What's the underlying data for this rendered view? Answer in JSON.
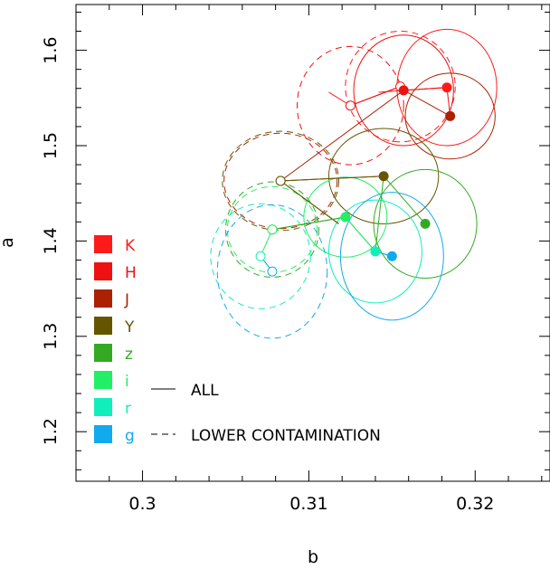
{
  "chart_data": {
    "type": "scatter",
    "xlabel": "b",
    "ylabel": "a",
    "xlim": [
      0.296,
      0.3245
    ],
    "ylim": [
      1.148,
      1.648
    ],
    "xticks": [
      {
        "value": 0.3,
        "label": "0.3"
      },
      {
        "value": 0.31,
        "label": "0.31"
      },
      {
        "value": 0.32,
        "label": "0.32"
      }
    ],
    "yticks": [
      {
        "value": 1.2,
        "label": "1.2"
      },
      {
        "value": 1.3,
        "label": "1.3"
      },
      {
        "value": 1.4,
        "label": "1.4"
      },
      {
        "value": 1.5,
        "label": "1.5"
      },
      {
        "value": 1.6,
        "label": "1.6"
      }
    ],
    "legend_placement": "lower-left",
    "linestyles": [
      {
        "style": "solid",
        "label": "ALL"
      },
      {
        "style": "dashed",
        "label": "LOWER CONTAMINATION"
      }
    ],
    "series": [
      {
        "name": "K",
        "color": "#ff1a1a",
        "all": {
          "b": 0.3183,
          "a": 1.561,
          "rb": 0.003,
          "ra": 0.061
        },
        "lower": {
          "b": 0.3155,
          "a": 1.562,
          "rb": 0.0033,
          "ra": 0.058
        },
        "all_path": [
          [
            0.3183,
            1.561
          ],
          [
            0.3157,
            1.558
          ],
          [
            0.3142,
            1.556
          ]
        ],
        "lower_path": [
          [
            0.3155,
            1.562
          ],
          [
            0.3125,
            1.542
          ],
          [
            0.3112,
            1.556
          ]
        ]
      },
      {
        "name": "H",
        "color": "#ee1111",
        "all": {
          "b": 0.3157,
          "a": 1.558,
          "rb": 0.003,
          "ra": 0.058
        },
        "lower": {
          "b": 0.3125,
          "a": 1.542,
          "rb": 0.0032,
          "ra": 0.062
        },
        "all_path": [
          [
            0.3157,
            1.558
          ],
          [
            0.3183,
            1.561
          ],
          [
            0.3185,
            1.531
          ]
        ],
        "lower_path": [
          [
            0.3125,
            1.542
          ],
          [
            0.3155,
            1.562
          ]
        ]
      },
      {
        "name": "J",
        "color": "#aa2200",
        "all": {
          "b": 0.3185,
          "a": 1.531,
          "rb": 0.0027,
          "ra": 0.045
        },
        "lower": {
          "b": 0.3083,
          "a": 1.463,
          "rb": 0.0034,
          "ra": 0.05
        },
        "all_path": [
          [
            0.3185,
            1.531
          ],
          [
            0.3157,
            1.558
          ],
          [
            0.3083,
            1.463
          ]
        ],
        "lower_path": [
          [
            0.3083,
            1.463
          ],
          [
            0.3145,
            1.468
          ]
        ]
      },
      {
        "name": "Y",
        "color": "#665500",
        "all": {
          "b": 0.3145,
          "a": 1.468,
          "rb": 0.0033,
          "ra": 0.05
        },
        "lower": {
          "b": 0.3083,
          "a": 1.463,
          "rb": 0.0035,
          "ra": 0.052
        },
        "all_path": [
          [
            0.3145,
            1.468
          ],
          [
            0.3083,
            1.463
          ],
          [
            0.3118,
            1.418
          ]
        ],
        "lower_path": [
          [
            0.3083,
            1.463
          ],
          [
            0.3118,
            1.418
          ]
        ]
      },
      {
        "name": "z",
        "color": "#33aa22",
        "all": {
          "b": 0.317,
          "a": 1.418,
          "rb": 0.0031,
          "ra": 0.057
        },
        "lower": {
          "b": 0.3078,
          "a": 1.412,
          "rb": 0.0028,
          "ra": 0.05
        },
        "all_path": [
          [
            0.317,
            1.418
          ],
          [
            0.3145,
            1.468
          ],
          [
            0.314,
            1.389
          ],
          [
            0.3122,
            1.425
          ],
          [
            0.3078,
            1.412
          ]
        ],
        "lower_path": [
          [
            0.3078,
            1.412
          ],
          [
            0.3122,
            1.425
          ]
        ]
      },
      {
        "name": "i",
        "color": "#22ee66",
        "all": {
          "b": 0.3122,
          "a": 1.425,
          "rb": 0.0025,
          "ra": 0.042
        },
        "lower": {
          "b": 0.3078,
          "a": 1.412,
          "rb": 0.0027,
          "ra": 0.045
        },
        "all_path": [
          [
            0.3122,
            1.425
          ],
          [
            0.314,
            1.389
          ],
          [
            0.315,
            1.384
          ]
        ],
        "lower_path": [
          [
            0.3078,
            1.412
          ],
          [
            0.3071,
            1.384
          ],
          [
            0.3078,
            1.368
          ]
        ]
      },
      {
        "name": "r",
        "color": "#11eebb",
        "all": {
          "b": 0.314,
          "a": 1.389,
          "rb": 0.0028,
          "ra": 0.054
        },
        "lower": {
          "b": 0.3071,
          "a": 1.384,
          "rb": 0.003,
          "ra": 0.055
        },
        "all_path": [
          [
            0.314,
            1.389
          ],
          [
            0.315,
            1.384
          ]
        ],
        "lower_path": [
          [
            0.3071,
            1.384
          ],
          [
            0.3078,
            1.368
          ]
        ]
      },
      {
        "name": "g",
        "color": "#11aaee",
        "all": {
          "b": 0.315,
          "a": 1.384,
          "rb": 0.0031,
          "ra": 0.067
        },
        "lower": {
          "b": 0.3078,
          "a": 1.368,
          "rb": 0.0033,
          "ra": 0.07
        },
        "all_path": [
          [
            0.315,
            1.384
          ],
          [
            0.314,
            1.389
          ]
        ],
        "lower_path": [
          [
            0.3078,
            1.368
          ],
          [
            0.3071,
            1.384
          ]
        ]
      }
    ]
  }
}
